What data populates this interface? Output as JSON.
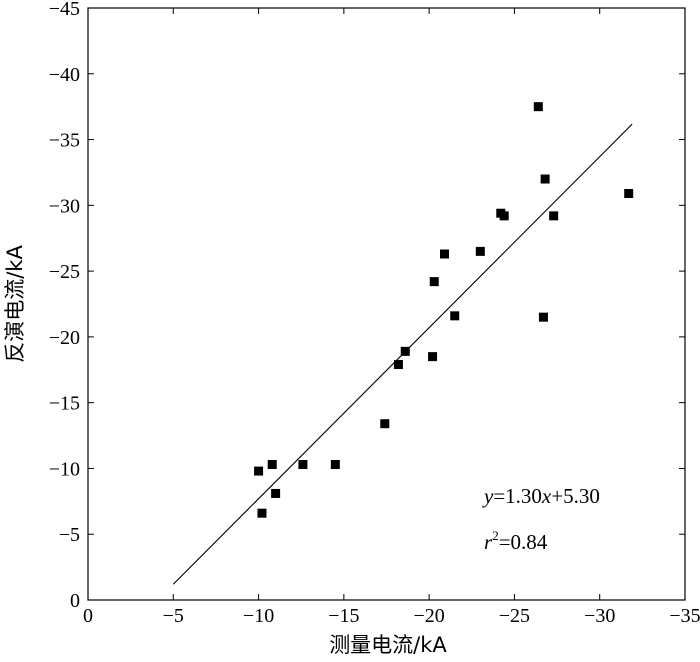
{
  "chart_data": {
    "type": "scatter",
    "xlabel": "测量电流/kA",
    "ylabel": "反演电流/kA",
    "xlim": [
      0,
      -35
    ],
    "ylim": [
      0,
      -45
    ],
    "xticks": [
      0,
      -5,
      -10,
      -15,
      -20,
      -25,
      -30,
      -35
    ],
    "yticks": [
      0,
      -5,
      -10,
      -15,
      -20,
      -25,
      -30,
      -35,
      -40,
      -45
    ],
    "xtick_labels": [
      "0",
      "−5",
      "−10",
      "−15",
      "−20",
      "−25",
      "−30",
      "−35"
    ],
    "ytick_labels": [
      "0",
      "−5",
      "−10",
      "−15",
      "−20",
      "−25",
      "−30",
      "−35",
      "−40",
      "−45"
    ],
    "grid": false,
    "points": [
      {
        "x": -10.0,
        "y": -9.8
      },
      {
        "x": -10.8,
        "y": -10.3
      },
      {
        "x": -12.6,
        "y": -10.3
      },
      {
        "x": -14.5,
        "y": -10.3
      },
      {
        "x": -10.2,
        "y": -6.6
      },
      {
        "x": -11.0,
        "y": -8.1
      },
      {
        "x": -17.4,
        "y": -13.4
      },
      {
        "x": -18.2,
        "y": -17.9
      },
      {
        "x": -18.6,
        "y": -18.9
      },
      {
        "x": -20.2,
        "y": -18.5
      },
      {
        "x": -20.3,
        "y": -24.2
      },
      {
        "x": -20.9,
        "y": -26.3
      },
      {
        "x": -21.5,
        "y": -21.6
      },
      {
        "x": -23.0,
        "y": -26.5
      },
      {
        "x": -24.2,
        "y": -29.4
      },
      {
        "x": -24.4,
        "y": -29.2
      },
      {
        "x": -26.4,
        "y": -37.5
      },
      {
        "x": -26.8,
        "y": -32.0
      },
      {
        "x": -27.3,
        "y": -29.2
      },
      {
        "x": -26.7,
        "y": -21.5
      },
      {
        "x": -31.7,
        "y": -30.9
      }
    ],
    "fit_line": {
      "slope": 1.3,
      "intercept": 5.3,
      "x_start": -5.0,
      "x_end": -31.9
    },
    "annotations": {
      "eq_y": "y",
      "eq_mid": "=1.30",
      "eq_x": "x",
      "eq_tail": "+5.30",
      "r_var": "r",
      "r_sup": "2",
      "r_tail": "=0.84"
    }
  }
}
